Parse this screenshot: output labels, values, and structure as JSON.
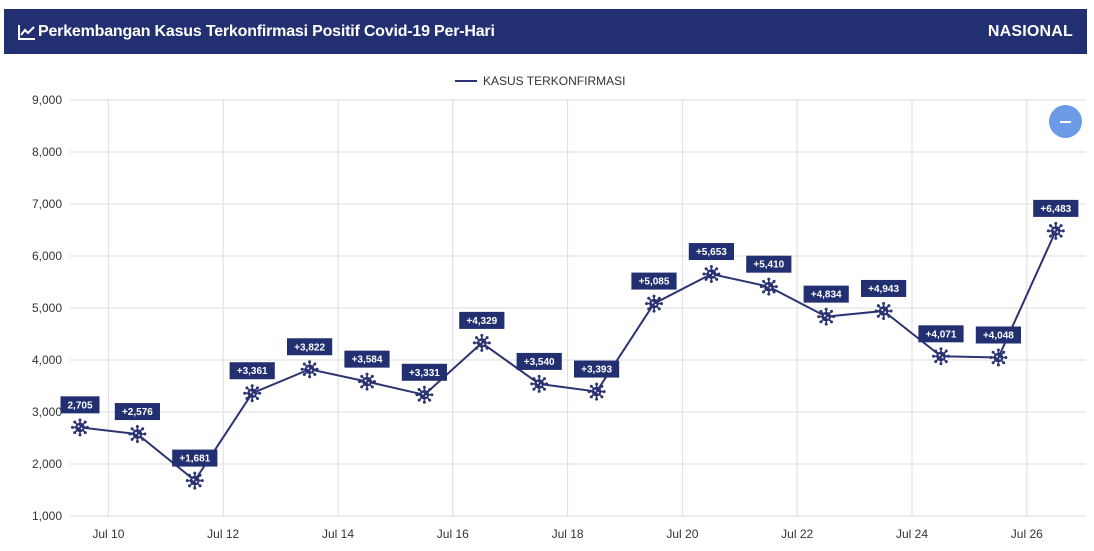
{
  "header": {
    "title": "Perkembangan Kasus Terkonfirmasi Positif Covid-19 Per-Hari",
    "title_icon": "line-chart-icon",
    "region": "NASIONAL"
  },
  "zoom_button": {
    "icon": "minus-icon"
  },
  "colors": {
    "header_bg": "#222f70",
    "series": "#2b3372",
    "label_bg": "#222f70",
    "zoom_button": "#6b9be6",
    "grid": "#dddddd"
  },
  "chart_data": {
    "type": "line",
    "legend": {
      "label": "KASUS TERKONFIRMASI",
      "position": "top-center"
    },
    "x_tick_labels": [
      "Jul 10",
      "Jul 12",
      "Jul 14",
      "Jul 16",
      "Jul 18",
      "Jul 20",
      "Jul 22",
      "Jul 24",
      "Jul 26"
    ],
    "y_tick_labels": [
      "1,000",
      "2,000",
      "3,000",
      "4,000",
      "5,000",
      "6,000",
      "7,000",
      "8,000",
      "9,000"
    ],
    "ylim": [
      1000,
      9000
    ],
    "grid": true,
    "marker": "virus-icon",
    "series": [
      {
        "name": "KASUS TERKONFIRMASI",
        "x": [
          "Jul 9",
          "Jul 10",
          "Jul 11",
          "Jul 12",
          "Jul 13",
          "Jul 14",
          "Jul 15",
          "Jul 16",
          "Jul 17",
          "Jul 18",
          "Jul 19",
          "Jul 20",
          "Jul 21",
          "Jul 22",
          "Jul 23",
          "Jul 24",
          "Jul 25",
          "Jul 26"
        ],
        "values": [
          2705,
          2576,
          1681,
          3361,
          3822,
          3584,
          3331,
          4329,
          3540,
          3393,
          5085,
          5653,
          5410,
          4834,
          4943,
          4071,
          4048,
          6483
        ],
        "labels": [
          "2,705",
          "+2,576",
          "+1,681",
          "+3,361",
          "+3,822",
          "+3,584",
          "+3,331",
          "+4,329",
          "+3,540",
          "+3,393",
          "+5,085",
          "+5,653",
          "+5,410",
          "+4,834",
          "+4,943",
          "+4,071",
          "+4,048",
          "+6,483"
        ]
      }
    ]
  }
}
